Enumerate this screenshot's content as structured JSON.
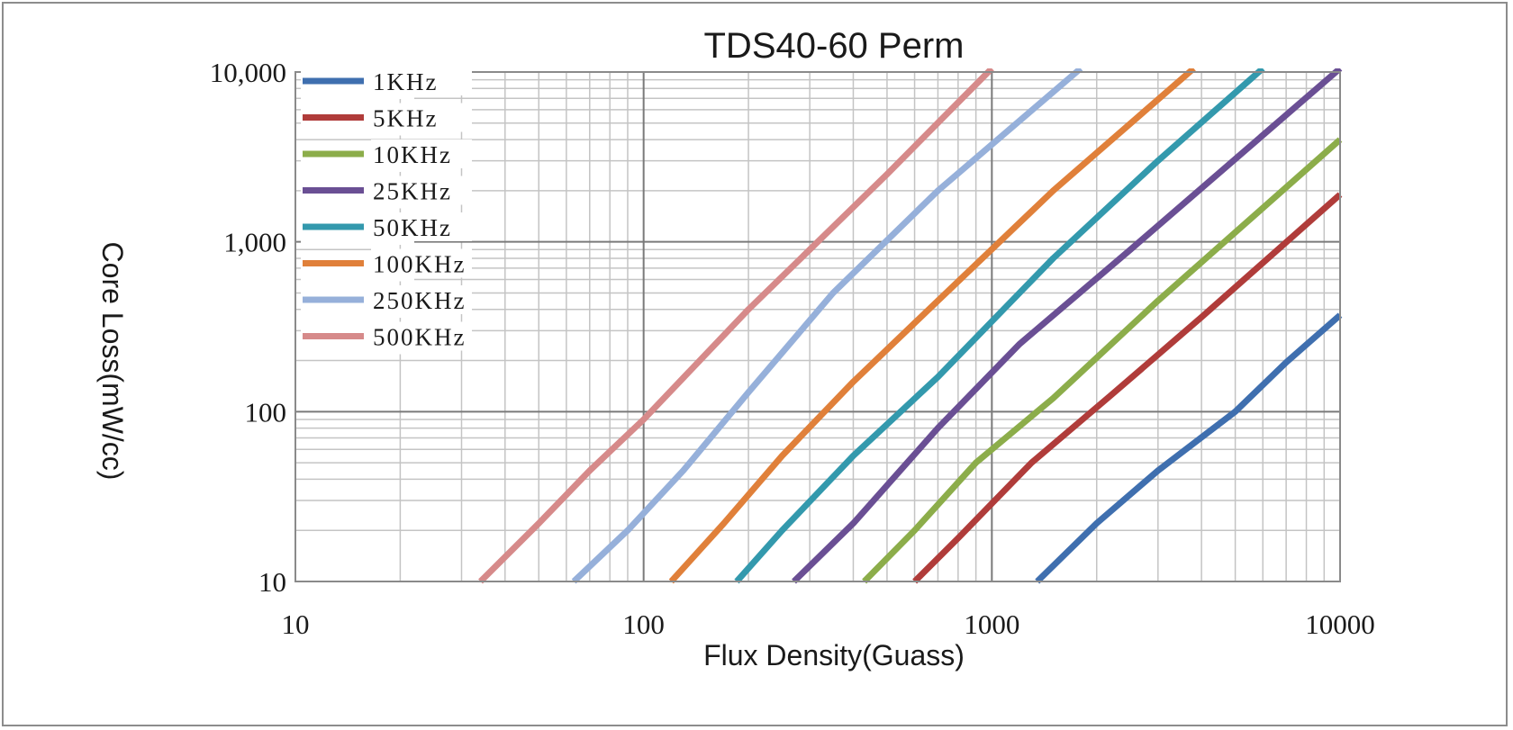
{
  "chart_data": {
    "type": "line",
    "title": "TDS40-60 Perm",
    "xlabel": "Flux Density(Guass)",
    "ylabel": "Core Loss(mW/cc)",
    "x_scale": "log",
    "y_scale": "log",
    "xlim": [
      10,
      10000
    ],
    "ylim": [
      10,
      10000
    ],
    "x_ticks": [
      10,
      100,
      1000,
      10000
    ],
    "x_tick_labels": [
      "10",
      "100",
      "1000",
      "10000"
    ],
    "y_ticks": [
      10,
      100,
      1000,
      10000
    ],
    "y_tick_labels": [
      "10",
      "100",
      "1,000",
      "10,000"
    ],
    "grid": true,
    "legend_position": "top-left",
    "series": [
      {
        "name": "1KHz",
        "color": "#3f6faf",
        "x": [
          1350,
          2000,
          3000,
          5000,
          7000,
          10000
        ],
        "y": [
          10,
          22,
          45,
          100,
          195,
          370
        ]
      },
      {
        "name": "5KHz",
        "color": "#b03c3a",
        "x": [
          600,
          800,
          1300,
          2200,
          4000,
          10000
        ],
        "y": [
          10,
          18,
          50,
          125,
          360,
          1900
        ]
      },
      {
        "name": "10KHz",
        "color": "#8cad4a",
        "x": [
          430,
          600,
          900,
          1500,
          3000,
          10000
        ],
        "y": [
          10,
          20,
          50,
          120,
          450,
          4000
        ]
      },
      {
        "name": "25KHz",
        "color": "#6a4f94",
        "x": [
          270,
          400,
          700,
          1200,
          2500,
          10000
        ],
        "y": [
          10,
          22,
          80,
          250,
          900,
          10500
        ]
      },
      {
        "name": "50KHz",
        "color": "#3399ad",
        "x": [
          185,
          250,
          400,
          700,
          1500,
          3000,
          6000
        ],
        "y": [
          10,
          20,
          55,
          160,
          800,
          3000,
          10500
        ]
      },
      {
        "name": "100KHz",
        "color": "#e0803a",
        "x": [
          120,
          170,
          250,
          400,
          700,
          1500,
          3800
        ],
        "y": [
          10,
          22,
          55,
          150,
          450,
          2000,
          10500
        ]
      },
      {
        "name": "250KHz",
        "color": "#96b0da",
        "x": [
          63,
          90,
          130,
          200,
          350,
          700,
          1800
        ],
        "y": [
          10,
          20,
          45,
          130,
          500,
          2000,
          10500
        ]
      },
      {
        "name": "500KHz",
        "color": "#d68a8a",
        "x": [
          34,
          50,
          70,
          100,
          200,
          500,
          1000
        ],
        "y": [
          10,
          22,
          45,
          90,
          400,
          2500,
          10500
        ]
      }
    ]
  }
}
